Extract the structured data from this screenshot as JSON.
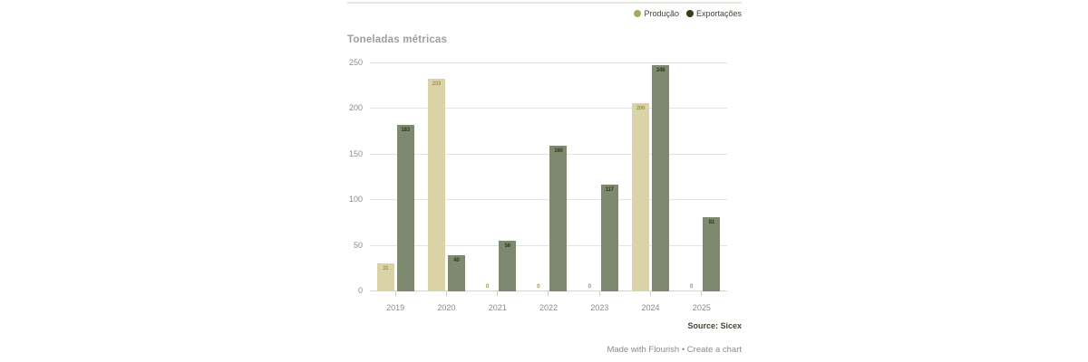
{
  "chart_data": {
    "type": "bar",
    "title": "Toneladas métricas",
    "categories": [
      "2019",
      "2020",
      "2021",
      "2022",
      "2023",
      "2024",
      "2025"
    ],
    "series": [
      {
        "name": "Produção",
        "legend_color": "#b1a75c",
        "bar_color": "#d9d3a7",
        "value_label_color": "#9f964d",
        "values": [
          31,
          233,
          0,
          0,
          0,
          206,
          0
        ]
      },
      {
        "name": "Exportações",
        "legend_color": "#333f1d",
        "bar_color": "#7d8a70",
        "value_label_color": "#2c3a1c",
        "values": [
          183,
          40,
          56,
          160,
          117,
          248,
          81
        ]
      }
    ],
    "xlabel": "",
    "ylabel": "",
    "ylim": [
      0,
      250
    ],
    "yticks": [
      0,
      50,
      100,
      150,
      200,
      250
    ],
    "grid": true,
    "legend_position": "top-right"
  },
  "footer": {
    "source": "Source: Sicex",
    "made_with": "Made with Flourish",
    "separator": "•",
    "create_chart": "Create a chart"
  },
  "colors": {
    "grid": "#e3e3df",
    "axis_text": "#8b8b85",
    "title_text": "#9aa09b",
    "legend_text": "#3d4630",
    "source_text": "#3e4637",
    "credit_text": "#8c8c88"
  }
}
